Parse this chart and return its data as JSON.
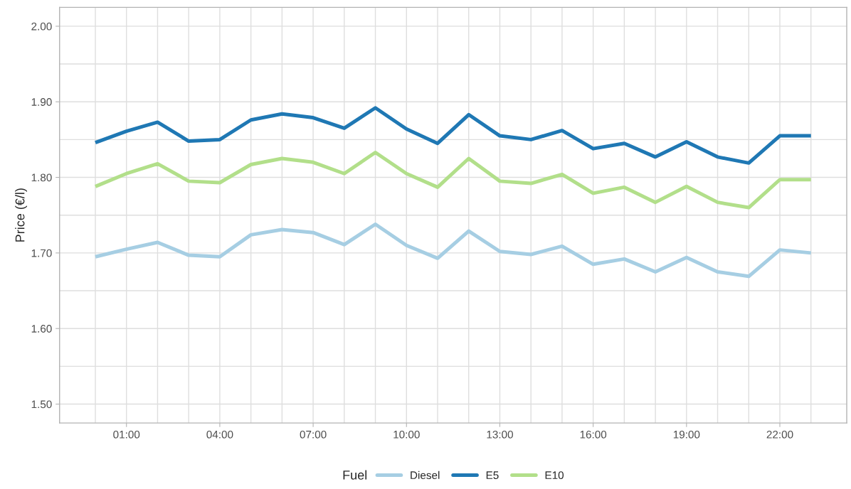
{
  "chart_data": {
    "type": "line",
    "ylabel": "Price (€/l)",
    "legend_title": "Fuel",
    "legend": "bottom",
    "grid": true,
    "line_style": "solid",
    "marker": "none",
    "x": [
      0,
      1,
      2,
      3,
      4,
      5,
      6,
      7,
      8,
      9,
      10,
      11,
      12,
      13,
      14,
      15,
      16,
      17,
      18,
      19,
      20,
      21,
      22,
      23
    ],
    "xlim": [
      -1.15,
      24.15
    ],
    "xticks": [
      {
        "value": 0,
        "label": null
      },
      {
        "value": 1,
        "label": "01:00"
      },
      {
        "value": 2,
        "label": null
      },
      {
        "value": 3,
        "label": null
      },
      {
        "value": 4,
        "label": "04:00"
      },
      {
        "value": 5,
        "label": null
      },
      {
        "value": 6,
        "label": null
      },
      {
        "value": 7,
        "label": "07:00"
      },
      {
        "value": 8,
        "label": null
      },
      {
        "value": 9,
        "label": null
      },
      {
        "value": 10,
        "label": "10:00"
      },
      {
        "value": 11,
        "label": null
      },
      {
        "value": 12,
        "label": null
      },
      {
        "value": 13,
        "label": "13:00"
      },
      {
        "value": 14,
        "label": null
      },
      {
        "value": 15,
        "label": null
      },
      {
        "value": 16,
        "label": "16:00"
      },
      {
        "value": 17,
        "label": null
      },
      {
        "value": 18,
        "label": null
      },
      {
        "value": 19,
        "label": "19:00"
      },
      {
        "value": 20,
        "label": null
      },
      {
        "value": 21,
        "label": null
      },
      {
        "value": 22,
        "label": "22:00"
      },
      {
        "value": 23,
        "label": null
      }
    ],
    "ylim": [
      1.475,
      2.025
    ],
    "yticks": [
      {
        "value": 1.5,
        "label": "1.50"
      },
      {
        "value": 1.55,
        "label": null
      },
      {
        "value": 1.6,
        "label": "1.60"
      },
      {
        "value": 1.65,
        "label": null
      },
      {
        "value": 1.7,
        "label": "1.70"
      },
      {
        "value": 1.75,
        "label": null
      },
      {
        "value": 1.8,
        "label": "1.80"
      },
      {
        "value": 1.85,
        "label": null
      },
      {
        "value": 1.9,
        "label": "1.90"
      },
      {
        "value": 1.95,
        "label": null
      },
      {
        "value": 2.0,
        "label": "2.00"
      }
    ],
    "series": [
      {
        "name": "Diesel",
        "color": "#a6cee3",
        "values": [
          1.695,
          1.705,
          1.714,
          1.697,
          1.695,
          1.724,
          1.731,
          1.727,
          1.711,
          1.738,
          1.71,
          1.693,
          1.729,
          1.702,
          1.698,
          1.709,
          1.685,
          1.692,
          1.675,
          1.694,
          1.675,
          1.669,
          1.704,
          1.7
        ]
      },
      {
        "name": "E5",
        "color": "#1f78b4",
        "values": [
          1.846,
          1.861,
          1.873,
          1.848,
          1.85,
          1.876,
          1.884,
          1.879,
          1.865,
          1.892,
          1.864,
          1.845,
          1.883,
          1.855,
          1.85,
          1.862,
          1.838,
          1.845,
          1.827,
          1.847,
          1.827,
          1.819,
          1.855,
          1.855
        ]
      },
      {
        "name": "E10",
        "color": "#b2df8a",
        "values": [
          1.788,
          1.805,
          1.818,
          1.795,
          1.793,
          1.817,
          1.825,
          1.82,
          1.805,
          1.833,
          1.805,
          1.787,
          1.825,
          1.795,
          1.792,
          1.804,
          1.779,
          1.787,
          1.767,
          1.788,
          1.767,
          1.76,
          1.797,
          1.797
        ]
      }
    ]
  }
}
